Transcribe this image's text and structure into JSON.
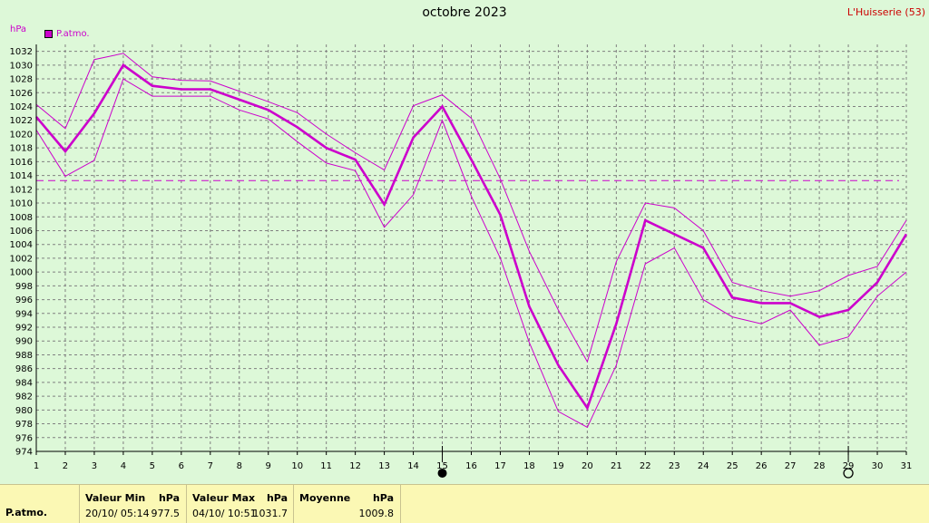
{
  "header": {
    "title": "octobre 2023",
    "station": "L'Huisserie (53)",
    "unit": "hPa",
    "legend_label": "P.atmo."
  },
  "colors": {
    "series": "#cc00cc",
    "grid": "#808080",
    "axis": "#000000",
    "background": "#ddf8d8",
    "footer_bg": "#fbf8b4"
  },
  "chart_data": {
    "type": "line",
    "title": "octobre 2023",
    "ylabel": "hPa",
    "ylim": [
      974,
      1033
    ],
    "yticks": [
      974,
      976,
      978,
      980,
      982,
      984,
      986,
      988,
      990,
      992,
      994,
      996,
      998,
      1000,
      1002,
      1004,
      1006,
      1008,
      1010,
      1012,
      1014,
      1016,
      1018,
      1020,
      1022,
      1024,
      1026,
      1028,
      1030,
      1032
    ],
    "x": [
      1,
      2,
      3,
      4,
      5,
      6,
      7,
      8,
      9,
      10,
      11,
      12,
      13,
      14,
      15,
      16,
      17,
      18,
      19,
      20,
      21,
      22,
      23,
      24,
      25,
      26,
      27,
      28,
      29,
      30,
      31
    ],
    "series": [
      {
        "name": "P.atmo.",
        "role": "mean",
        "values": [
          1022.5,
          1017.5,
          1023,
          1030,
          1027,
          1026.5,
          1026.5,
          1025,
          1023.5,
          1021,
          1018,
          1016.3,
          1009.8,
          1019.5,
          1024,
          1016.3,
          1008.3,
          995,
          986.5,
          980.3,
          992.5,
          1007.5,
          1005.5,
          1003.5,
          996.3,
          995.5,
          995.5,
          993.5,
          994.5,
          998.5,
          1005.5
        ]
      },
      {
        "role": "max",
        "values": [
          1024.3,
          1020.8,
          1030.8,
          1031.7,
          1028.3,
          1027.8,
          1027.7,
          1026.2,
          1024.7,
          1023.1,
          1020,
          1017.3,
          1014.8,
          1024.1,
          1025.7,
          1022.3,
          1013.5,
          1003,
          994.5,
          987,
          1001.5,
          1010,
          1009.3,
          1006,
          998.5,
          997.3,
          996.5,
          997.3,
          999.5,
          1000.8,
          1007.5
        ]
      },
      {
        "role": "min",
        "values": [
          1020.6,
          1013.9,
          1016.2,
          1028,
          1025.5,
          1025.5,
          1025.5,
          1023.5,
          1022.2,
          1018.9,
          1015.8,
          1014.7,
          1006.5,
          1011.2,
          1022,
          1011,
          1002,
          989.8,
          979.8,
          977.5,
          986.5,
          1001.2,
          1003.5,
          996,
          993.5,
          992.5,
          994.5,
          989.4,
          990.6,
          996.5,
          1000
        ]
      }
    ],
    "reference_line": 1013.25,
    "moon_phases": [
      {
        "day": 15,
        "phase": "new-moon"
      },
      {
        "day": 29,
        "phase": "full-moon"
      }
    ],
    "grid": true
  },
  "footer": {
    "sensor": "P.atmo.",
    "min_label": "Valeur Min",
    "min_unit": "hPa",
    "min_date": "20/10/  05:14",
    "min_value": "977.5",
    "max_label": "Valeur Max",
    "max_unit": "hPa",
    "max_date": "04/10/  10:51",
    "max_value": "1031.7",
    "avg_label": "Moyenne",
    "avg_unit": "hPa",
    "avg_value": "1009.8"
  }
}
